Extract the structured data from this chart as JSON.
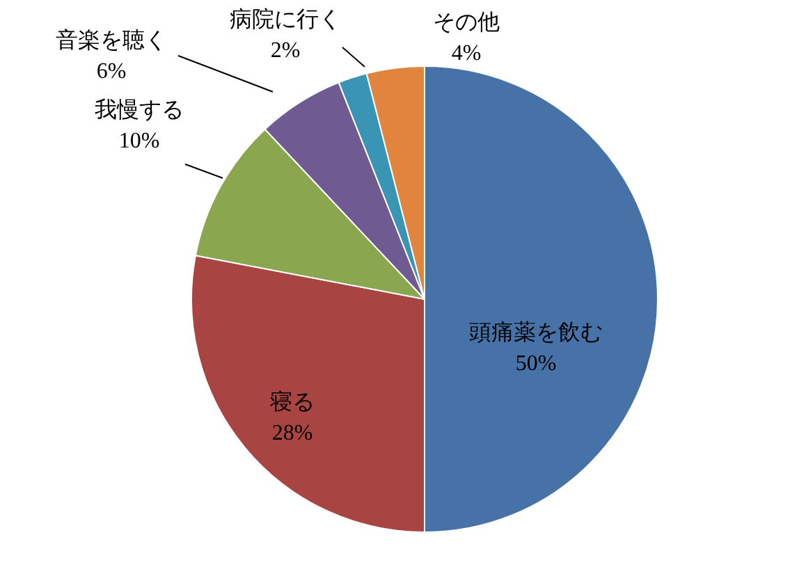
{
  "chart_data": {
    "type": "pie",
    "categories": [
      "頭痛薬を飲む",
      "寝る",
      "我慢する",
      "音楽を聴く",
      "病院に行く",
      "その他"
    ],
    "values": [
      50,
      28,
      10,
      6,
      2,
      4
    ],
    "colors": [
      "#4672a8",
      "#a84542",
      "#8aa64e",
      "#6f5a92",
      "#3a95b5",
      "#e0843e"
    ],
    "value_labels": [
      "50%",
      "28%",
      "10%",
      "6%",
      "2%",
      "4%"
    ]
  }
}
